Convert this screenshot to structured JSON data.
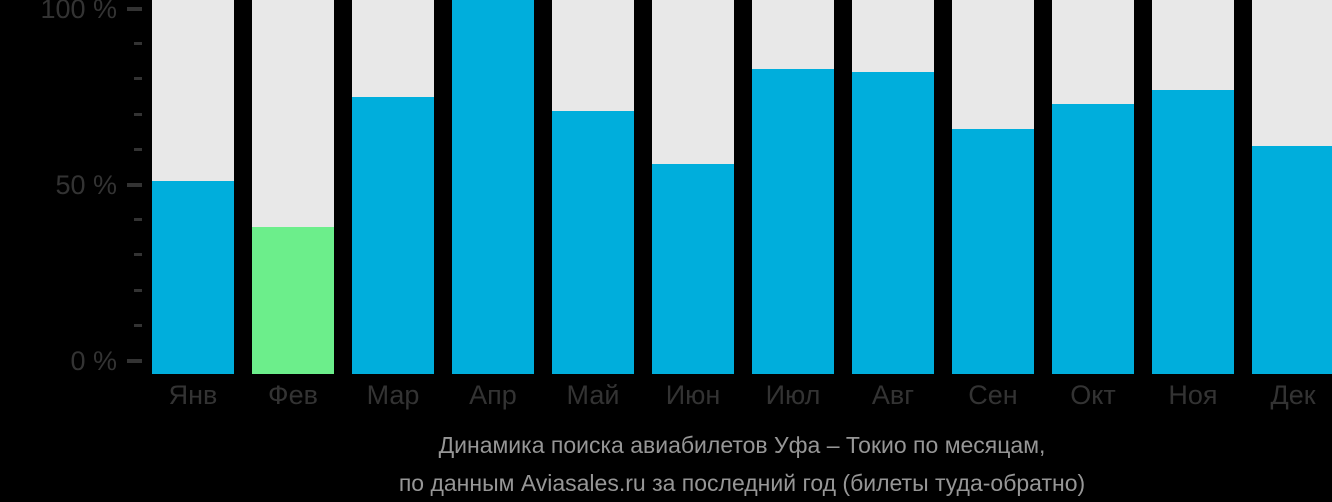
{
  "chart_data": {
    "type": "bar",
    "title": "Динамика поиска авиабилетов Уфа – Токио по месяцам,",
    "subtitle": "по данным Aviasales.ru за последний год (билеты туда-обратно)",
    "unit": "%",
    "categories": [
      "Янв",
      "Фев",
      "Мар",
      "Апр",
      "Май",
      "Июн",
      "Июл",
      "Авг",
      "Сен",
      "Окт",
      "Ноя",
      "Дек"
    ],
    "values": [
      51,
      38,
      75,
      100,
      71,
      56,
      83,
      82,
      66,
      73,
      77,
      61
    ],
    "highlight": {
      "index": 1,
      "category": "Фев",
      "value": 38
    },
    "ylim": [
      0,
      100
    ],
    "y_major_ticks": [
      {
        "value": 0,
        "label": "0 %"
      },
      {
        "value": 50,
        "label": "50 %"
      },
      {
        "value": 100,
        "label": "100 %"
      }
    ],
    "y_minor_ticks": [
      10,
      20,
      30,
      40,
      60,
      70,
      80,
      90
    ],
    "grid": "off",
    "legend": "none",
    "colors": {
      "bar_default": "#00AEDC",
      "bar_highlight": "#6CEE8B",
      "track": "#E8E8E8",
      "axis_text": "#333333",
      "tick": "#333333",
      "caption_text": "#969696",
      "background": "#000000"
    }
  }
}
